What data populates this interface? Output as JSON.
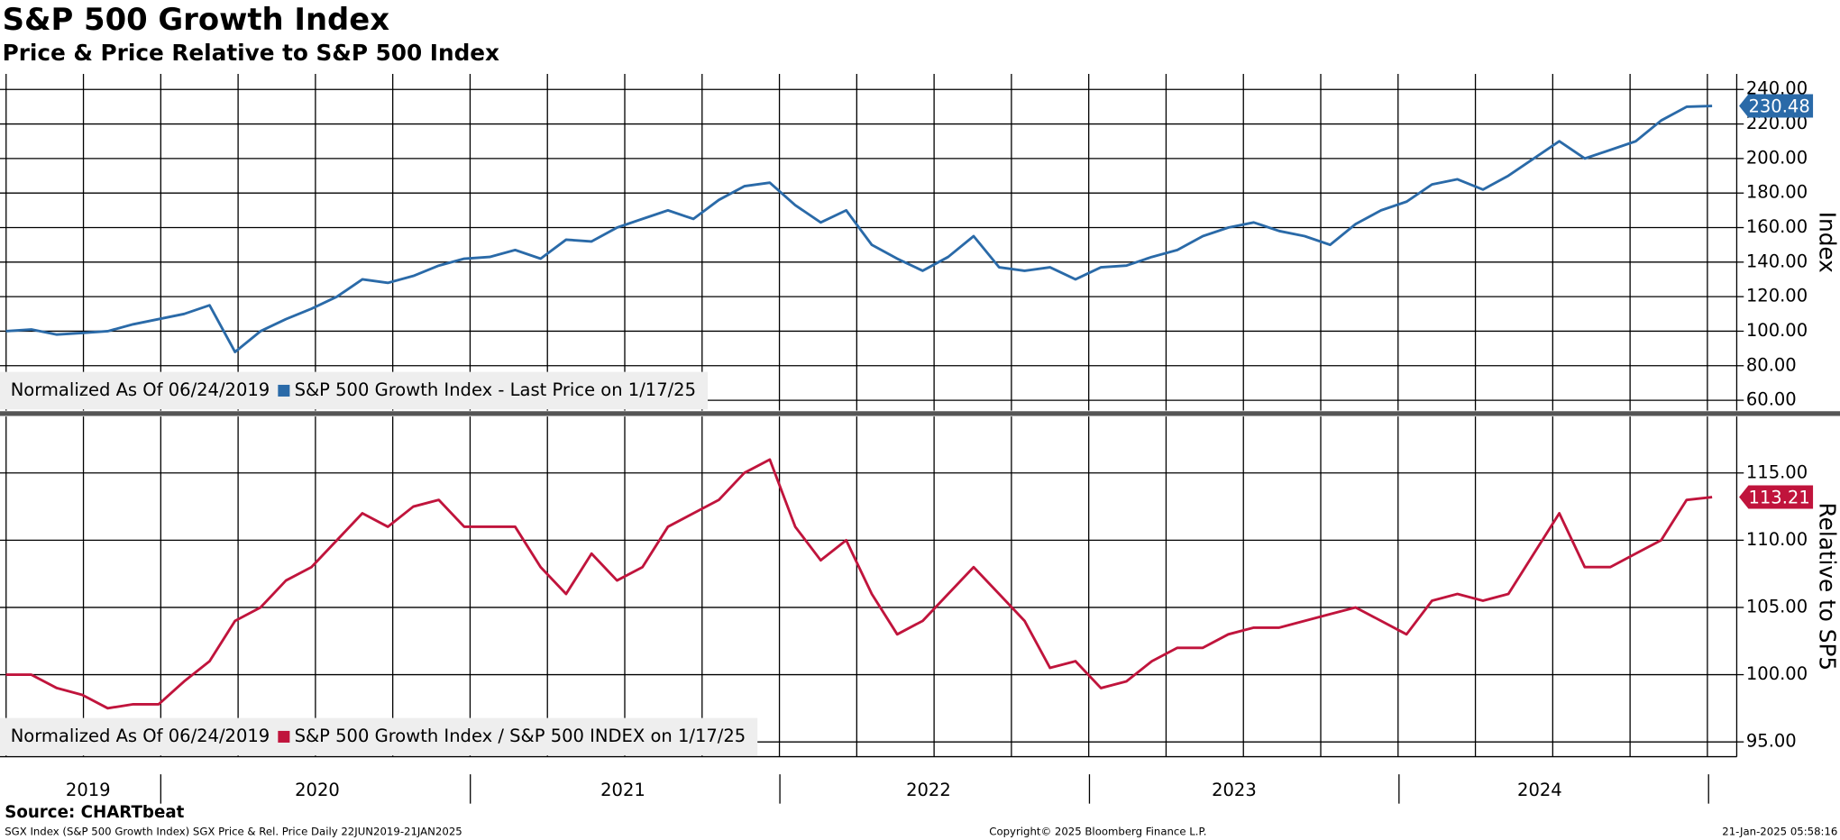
{
  "chart_data": [
    {
      "type": "line",
      "title": "S&P 500 Growth Index",
      "subtitle": "Price & Price Relative to S&P 500 Index",
      "y_label": "Index",
      "legend_note": "Normalized As Of 06/24/2019",
      "series": [
        {
          "name": "S&P 500 Growth Index - Last Price on 1/17/25",
          "color": "#2a6aa8",
          "values": [
            100,
            101,
            98,
            99,
            100,
            104,
            107,
            110,
            115,
            88,
            100,
            107,
            113,
            120,
            130,
            128,
            132,
            138,
            142,
            143,
            147,
            142,
            153,
            152,
            160,
            165,
            170,
            165,
            176,
            184,
            186,
            173,
            163,
            170,
            150,
            142,
            135,
            143,
            155,
            137,
            135,
            137,
            130,
            137,
            138,
            143,
            147,
            155,
            160,
            163,
            158,
            155,
            150,
            162,
            170,
            175,
            185,
            188,
            182,
            190,
            200,
            210,
            200,
            205,
            210,
            222,
            230,
            230.48
          ]
        }
      ],
      "ylim": [
        54,
        249
      ],
      "yticks": [
        {
          "value": 60,
          "label": "60.00"
        },
        {
          "value": 80,
          "label": "80.00"
        },
        {
          "value": 100,
          "label": "100.00"
        },
        {
          "value": 120,
          "label": "120.00"
        },
        {
          "value": 140,
          "label": "140.00"
        },
        {
          "value": 160,
          "label": "160.00"
        },
        {
          "value": 180,
          "label": "180.00"
        },
        {
          "value": 200,
          "label": "200.00"
        },
        {
          "value": 220,
          "label": "220.00"
        },
        {
          "value": 240,
          "label": "240.00"
        }
      ],
      "grid": true
    },
    {
      "type": "line",
      "y_label": "Relative to SP5",
      "legend_note": "Normalized As Of 06/24/2019",
      "categories": [
        null,
        null,
        null,
        "2019",
        null,
        null,
        null,
        null,
        null,
        null,
        null,
        null,
        "2020",
        null,
        null,
        null,
        null,
        null,
        null,
        null,
        null,
        null,
        null,
        null,
        "2021",
        null,
        null,
        null,
        null,
        null,
        null,
        null,
        null,
        null,
        null,
        null,
        "2022",
        null,
        null,
        null,
        null,
        null,
        null,
        null,
        null,
        null,
        null,
        null,
        "2023",
        null,
        null,
        null,
        null,
        null,
        null,
        null,
        null,
        null,
        null,
        null,
        "2024",
        null,
        null,
        null,
        null,
        null,
        null,
        null
      ],
      "series": [
        {
          "name": "S&P 500 Growth Index / S&P 500 INDEX on 1/17/25",
          "color": "#c0143c",
          "values": [
            100,
            100,
            99,
            98.5,
            97.5,
            97.8,
            97.8,
            99.5,
            101,
            104,
            105,
            107,
            108,
            110,
            112,
            111,
            112.5,
            113,
            111,
            111,
            111,
            108,
            106,
            109,
            107,
            108,
            111,
            112,
            113,
            115,
            116,
            111,
            108.5,
            110,
            106,
            103,
            104,
            106,
            108,
            106,
            104,
            100.5,
            101,
            99,
            99.5,
            101,
            102,
            102,
            103,
            103.5,
            103.5,
            104,
            104.5,
            105,
            104,
            103,
            105.5,
            106,
            105.5,
            106,
            109,
            112,
            108,
            108,
            109,
            110,
            113,
            113.21
          ]
        }
      ],
      "ylim": [
        93.9,
        119.2
      ],
      "yticks": [
        {
          "value": 95,
          "label": "95.00"
        },
        {
          "value": 100,
          "label": "100.00"
        },
        {
          "value": 105,
          "label": "105.00"
        },
        {
          "value": 110,
          "label": "110.00"
        },
        {
          "value": 115,
          "label": "115.00"
        }
      ],
      "grid": true
    }
  ],
  "footer": {
    "source": "Source: CHARTbeat",
    "description": "SGX Index (S&P 500 Growth Index) SGX Price & Rel. Price  Daily 22JUN2019-21JAN2025",
    "copyright": "Copyright© 2025 Bloomberg Finance L.P.",
    "timestamp": "21-Jan-2025 05:58:16"
  }
}
